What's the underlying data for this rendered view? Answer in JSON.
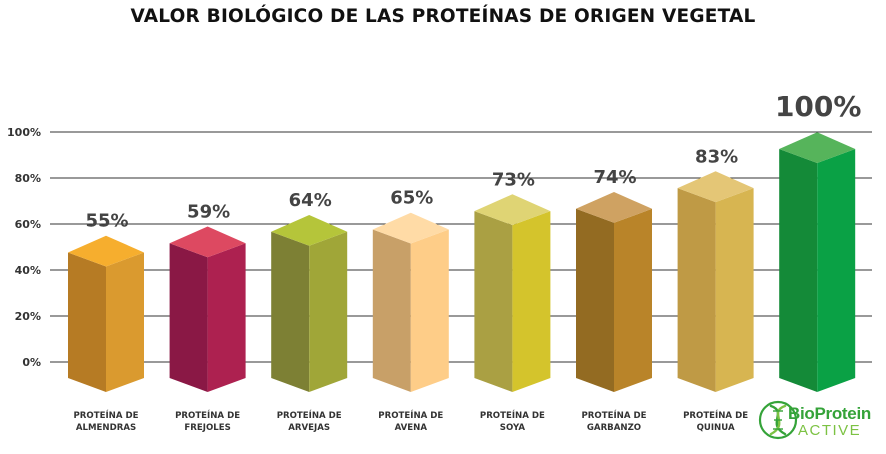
{
  "chart_data": {
    "type": "bar",
    "title": "VALOR BIOLÓGICO DE LAS PROTEÍNAS DE ORIGEN VEGETAL",
    "xlabel": "",
    "ylabel": "",
    "ylim": [
      0,
      100
    ],
    "y_ticks": [
      "0%",
      "20%",
      "40%",
      "60%",
      "80%",
      "100%"
    ],
    "grid": true,
    "categories": [
      [
        "PROTEÍNA DE",
        "ALMENDRAS"
      ],
      [
        "PROTEÍNA DE",
        "FREJOLES"
      ],
      [
        "PROTEÍNA DE",
        "ARVEJAS"
      ],
      [
        "PROTEÍNA DE",
        "AVENA"
      ],
      [
        "PROTEÍNA DE",
        "SOYA"
      ],
      [
        "PROTEÍNA DE",
        "GARBANZO"
      ],
      [
        "PROTEÍNA DE",
        "QUINUA"
      ],
      [
        "",
        ""
      ]
    ],
    "values": [
      55,
      59,
      64,
      65,
      73,
      74,
      83,
      100
    ],
    "value_labels": [
      "55%",
      "59%",
      "64%",
      "65%",
      "73%",
      "74%",
      "83%",
      "100%"
    ],
    "colors": [
      {
        "top": "#f6ae2e",
        "left": "#b67b24",
        "right": "#da9a2f"
      },
      {
        "top": "#dd4961",
        "left": "#8a1845",
        "right": "#ad2150"
      },
      {
        "top": "#b5c53a",
        "left": "#7d8034",
        "right": "#a0a638"
      },
      {
        "top": "#ffdba6",
        "left": "#c8a068",
        "right": "#fecd88"
      },
      {
        "top": "#dfd474",
        "left": "#aaa043",
        "right": "#d4c42c"
      },
      {
        "top": "#cfa262",
        "left": "#936b22",
        "right": "#b98429"
      },
      {
        "top": "#e4c676",
        "left": "#bf9a45",
        "right": "#d7b551"
      },
      {
        "top": "#56b45b",
        "left": "#148a38",
        "right": "#0aa145"
      }
    ]
  },
  "brand": {
    "name": "BioProtein",
    "sub": "ACTIVE",
    "icon": "leaf-dna-icon",
    "colors": {
      "primary": "#35a339",
      "secondary": "#7cc243"
    }
  }
}
